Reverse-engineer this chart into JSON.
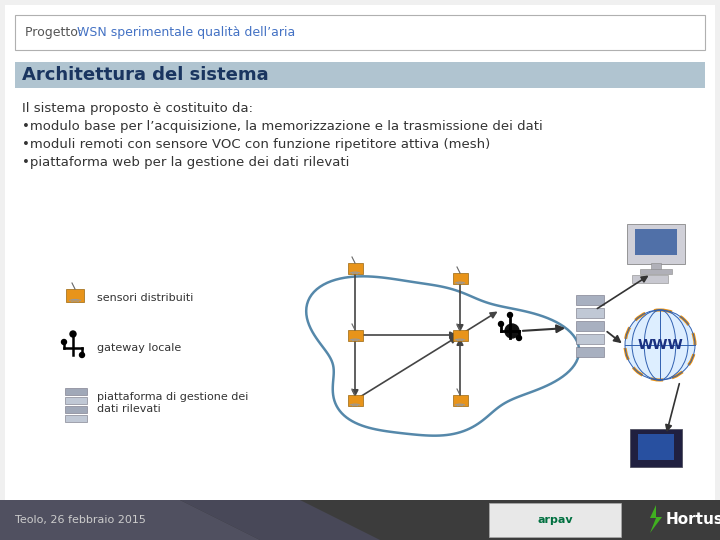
{
  "slide_bg": "#f5f5f5",
  "header_text_normal": "Progetto: ",
  "header_text_colored": "WSN sperimentale qualità dell’aria",
  "title_bar_color": "#b0c4d0",
  "title_text": "Architettura del sistema",
  "title_text_color": "#1a3560",
  "body_line0": "Il sistema proposto è costituito da:",
  "body_line1": "•modulo base per l’acquisizione, la memorizzazione e la trasmissione dei dati",
  "body_line2": "•moduli remoti con sensore VOC con funzione ripetitore attiva (mesh)",
  "body_line3": "•piattaforma web per la gestione dei dati rilevati",
  "legend_label1": "sensori distribuiti",
  "legend_label2": "gateway locale",
  "legend_label3": "piattaforma di gestione dei\ndati rilevati",
  "footer_text": "Teolo, 26 febbraio 2015",
  "body_font_size": 9.5,
  "title_font_size": 13,
  "header_font_size": 9
}
